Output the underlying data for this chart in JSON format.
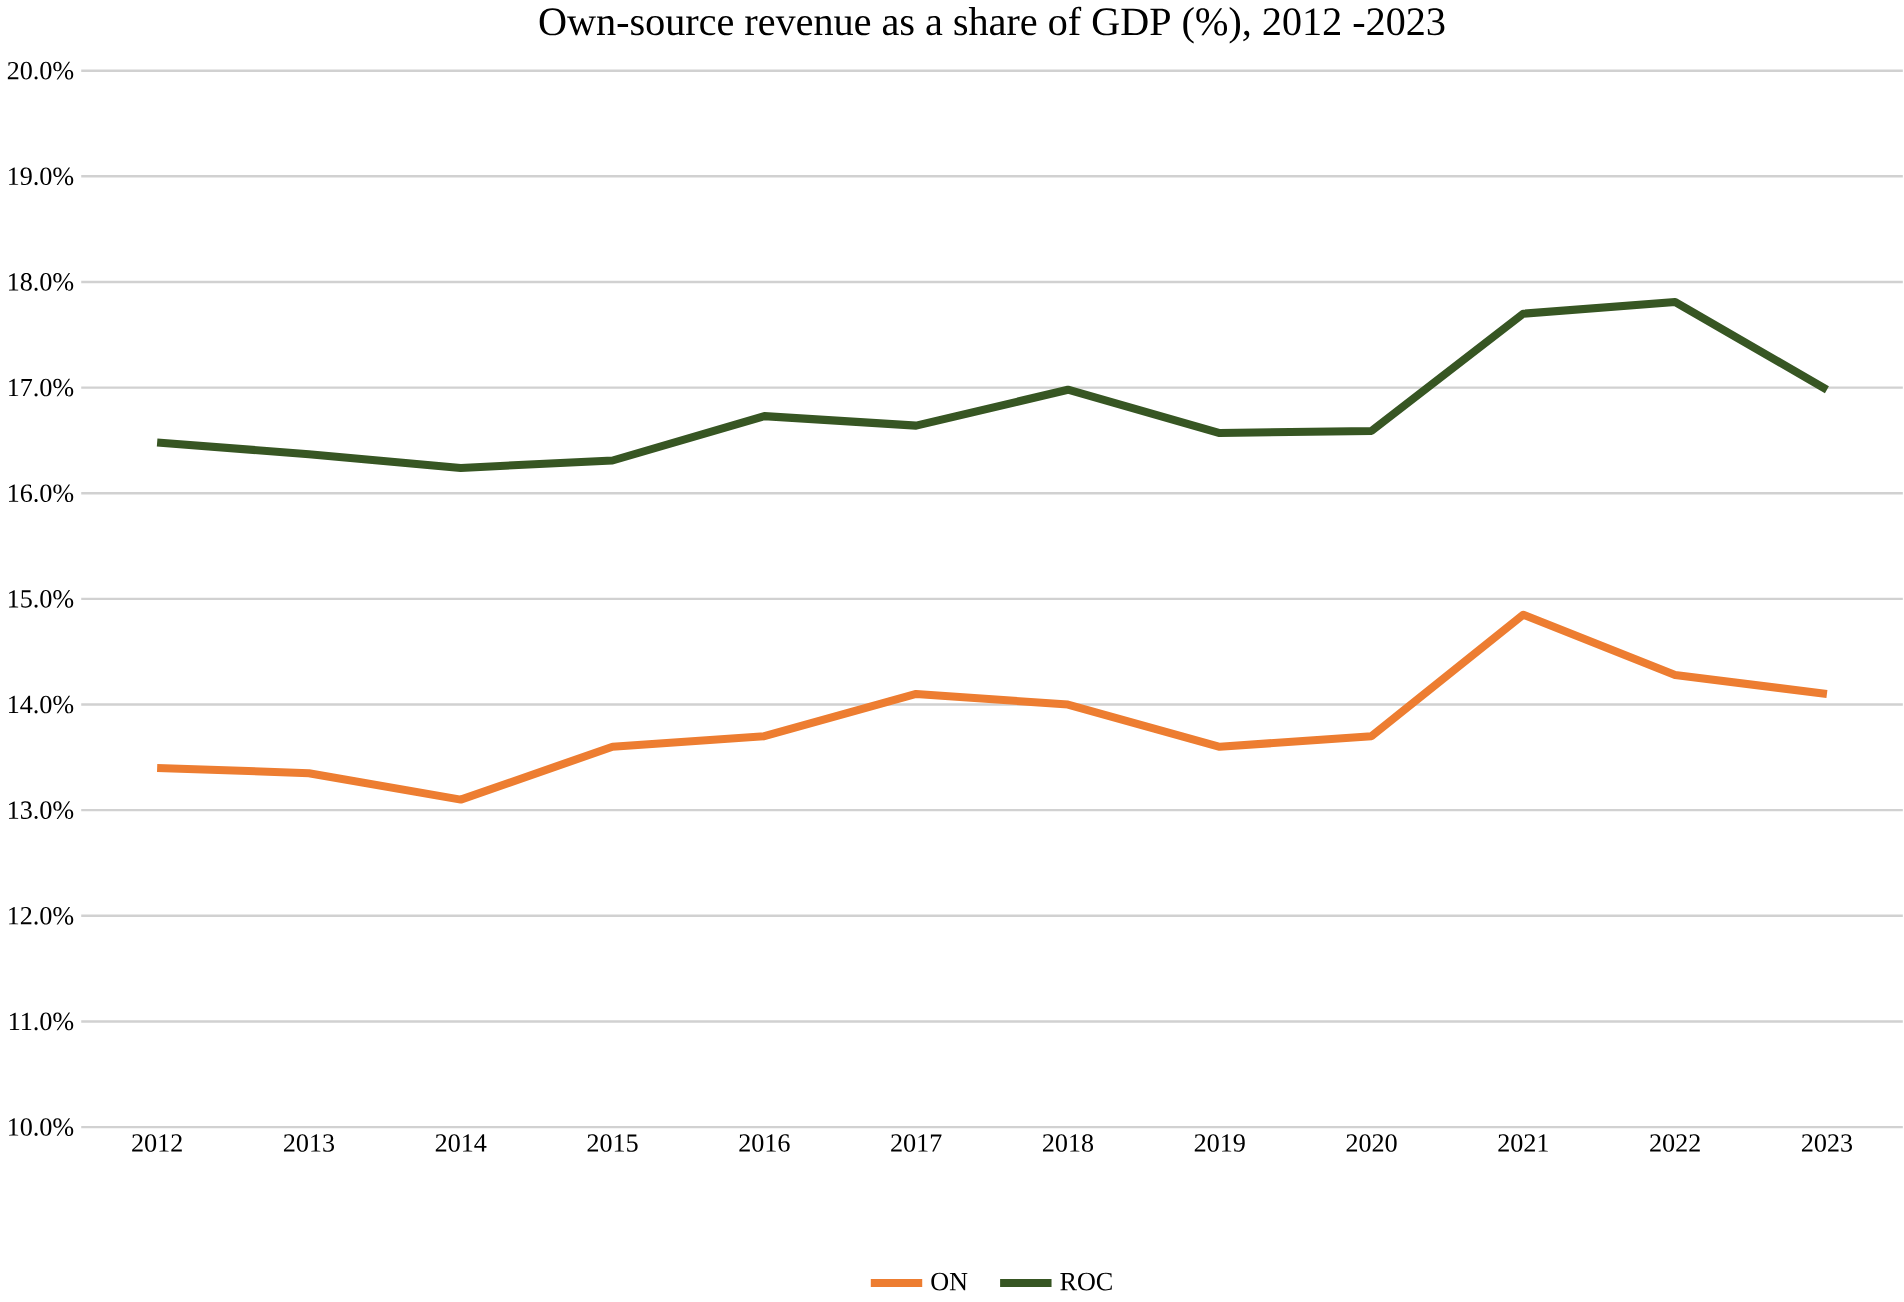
{
  "chart_data": {
    "type": "line",
    "title": "Own-source revenue as a share of GDP (%), 2012 -2023",
    "categories": [
      "2012",
      "2013",
      "2014",
      "2015",
      "2016",
      "2017",
      "2018",
      "2019",
      "2020",
      "2021",
      "2022",
      "2023"
    ],
    "series": [
      {
        "name": "ON",
        "color": "#ed7d31",
        "values": [
          13.4,
          13.35,
          13.1,
          13.6,
          13.7,
          14.1,
          14.0,
          13.6,
          13.7,
          14.85,
          14.28,
          14.1
        ]
      },
      {
        "name": "ROC",
        "color": "#375623",
        "values": [
          16.48,
          16.37,
          16.24,
          16.31,
          16.73,
          16.64,
          16.98,
          16.57,
          16.59,
          17.7,
          17.81,
          16.98
        ]
      }
    ],
    "ylim": [
      10,
      20
    ],
    "yticks": [
      {
        "value": 10,
        "label": "10.0%"
      },
      {
        "value": 11,
        "label": "11.0%"
      },
      {
        "value": 12,
        "label": "12.0%"
      },
      {
        "value": 13,
        "label": "13.0%"
      },
      {
        "value": 14,
        "label": "14.0%"
      },
      {
        "value": 15,
        "label": "15.0%"
      },
      {
        "value": 16,
        "label": "16.0%"
      },
      {
        "value": 17,
        "label": "17.0%"
      },
      {
        "value": 18,
        "label": "18.0%"
      },
      {
        "value": 19,
        "label": "19.0%"
      },
      {
        "value": 20,
        "label": "20.0%"
      }
    ],
    "grid": "y",
    "legend": "bottom",
    "marker": "none",
    "line_style": "solid"
  }
}
